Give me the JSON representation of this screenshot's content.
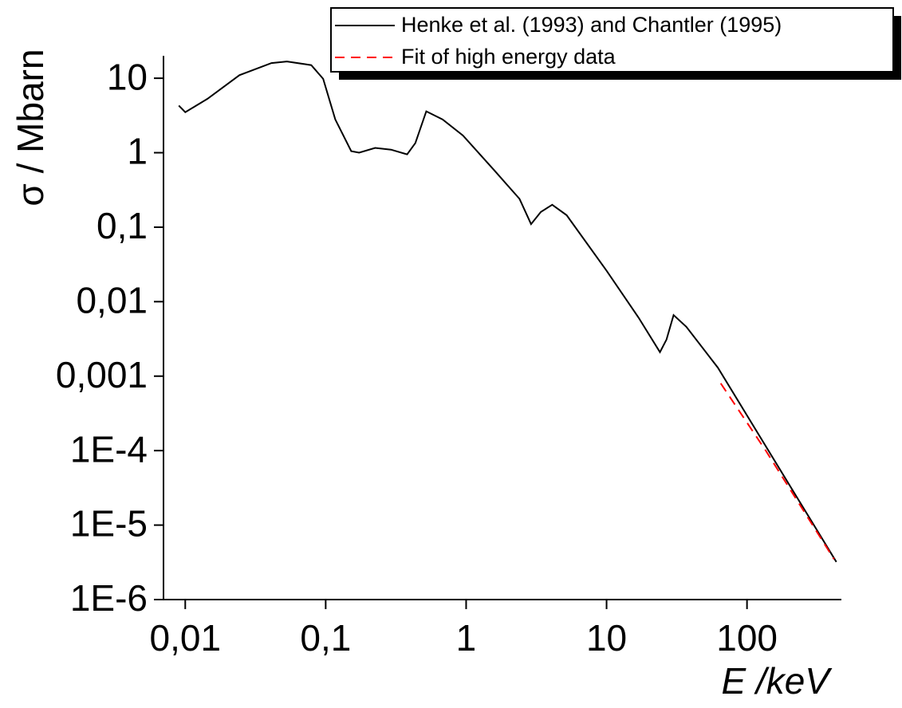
{
  "chart_data": {
    "type": "line",
    "x_label": "E /keV",
    "y_label": "σ / Mbarn",
    "log_x": true,
    "log_y": true,
    "xlim": [
      0.007,
      470
    ],
    "ylim": [
      1e-06,
      20
    ],
    "xticks": [
      {
        "value": 0.01,
        "label": "0,01"
      },
      {
        "value": 0.1,
        "label": "0,1"
      },
      1,
      10,
      100
    ],
    "yticks": [
      {
        "value": 1e-06,
        "label": "1E-6"
      },
      {
        "value": 1e-05,
        "label": "1E-5"
      },
      {
        "value": 0.0001,
        "label": "1E-4"
      },
      {
        "value": 0.001,
        "label": "0,001"
      },
      {
        "value": 0.01,
        "label": "0,01"
      },
      {
        "value": 0.1,
        "label": "0,1"
      },
      1,
      10
    ],
    "legend_position": "top-right",
    "series": [
      {
        "name": "Henke et al. (1993) and Chantler (1995)",
        "color": "#000000",
        "dash": "solid",
        "x": [
          0.009,
          0.01,
          0.0144,
          0.0243,
          0.0411,
          0.053,
          0.079,
          0.096,
          0.117,
          0.152,
          0.173,
          0.225,
          0.292,
          0.38,
          0.435,
          0.52,
          0.68,
          0.95,
          1.6,
          2.4,
          2.9,
          3.4,
          4.1,
          5.2,
          10,
          16.9,
          24,
          26.7,
          30,
          37,
          62,
          433
        ],
        "values": [
          4.3,
          3.5,
          5.3,
          11,
          16,
          16.8,
          15,
          9.8,
          2.8,
          1.05,
          1.0,
          1.16,
          1.1,
          0.95,
          1.35,
          3.6,
          2.8,
          1.7,
          0.57,
          0.24,
          0.11,
          0.16,
          0.2,
          0.145,
          0.026,
          0.0061,
          0.0021,
          0.0031,
          0.0066,
          0.0046,
          0.0013,
          3.2e-06
        ]
      },
      {
        "name": "Fit of high energy data",
        "color": "#ff0000",
        "dash": "dashed",
        "x": [
          65,
          137,
          416
        ],
        "values": [
          0.0008,
          9.8e-05,
          3.5e-06
        ]
      }
    ]
  }
}
